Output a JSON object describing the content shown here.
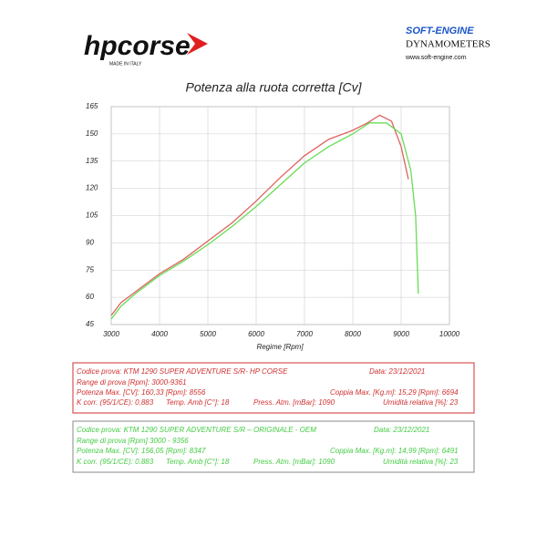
{
  "header": {
    "brand": "hpcorse",
    "brand_tag": "MADE IN ITALY",
    "dyno_brand": "SOFT-ENGINE",
    "dyno_sub": "DYNAMOMETERS",
    "dyno_url": "www.soft-engine.com"
  },
  "chart_data": {
    "type": "line",
    "title": "Potenza alla ruota corretta [Cv]",
    "x_label": "Regime [Rpm]",
    "xlim": [
      3000,
      10000
    ],
    "xticks": [
      3000,
      4000,
      5000,
      6000,
      7000,
      8000,
      9000,
      10000
    ],
    "ylim": [
      45,
      165
    ],
    "yticks": [
      45,
      60,
      75,
      90,
      105,
      120,
      135,
      150,
      165
    ],
    "grid": true,
    "series": [
      {
        "color": "#e06060",
        "x": [
          3000,
          3200,
          3500,
          4000,
          4500,
          5000,
          5500,
          6000,
          6500,
          7000,
          7500,
          8000,
          8300,
          8556,
          8800,
          9000,
          9150
        ],
        "values": [
          50,
          57,
          63,
          73,
          81,
          91,
          101,
          113,
          126,
          138,
          147,
          152,
          156,
          160.3,
          157,
          143,
          125
        ]
      },
      {
        "color": "#66dd55",
        "x": [
          3000,
          3200,
          3500,
          4000,
          4500,
          5000,
          5500,
          6000,
          6500,
          7000,
          7500,
          8000,
          8347,
          8700,
          9000,
          9200,
          9300,
          9356
        ],
        "values": [
          48,
          55,
          62,
          72,
          80,
          89,
          99,
          110,
          122,
          134,
          143,
          150,
          156.1,
          156,
          150,
          130,
          105,
          62
        ]
      }
    ]
  },
  "test_1": {
    "code": "Codice prova: KTM 1290 SUPER ADVENTURE S/R- HP CORSE",
    "date": "Data: 23/12/2021",
    "range": "Range di prova [Rpm]: 3000-9361",
    "power": "Potenza Max. [CV]: 160,33 [Rpm]: 8556",
    "torque": "Coppia Max. [Kg.m]: 15,29 [Rpm]: 6694",
    "kcorr": "K corr. (95/1/CE): 0.883",
    "temp": "Temp. Amb [C°]: 18",
    "press": "Press. Atm. [mBar]: 1090",
    "humidity": "Umidità relativa [%]: 23"
  },
  "test_2": {
    "code": "Codice prova: KTM 1290 SUPER ADVENTURE S/R – ORIGINALE - OEM",
    "date": "Data: 23/12/2021",
    "range": "Range di prova [Rpm] 3000 - 9356",
    "power": "Potenza Max. [CV]: 156,05 [Rpm]: 8347",
    "torque": "Coppia Max. [Kg.m]: 14,99 [Rpm]: 6491",
    "kcorr": "K corr. (95/1/CE): 0.883",
    "temp": "Temp. Amb [C°]: 18",
    "press": "Press. Atm. [mBar]: 1090",
    "humidity": "Umidità relativa [%]: 23"
  }
}
